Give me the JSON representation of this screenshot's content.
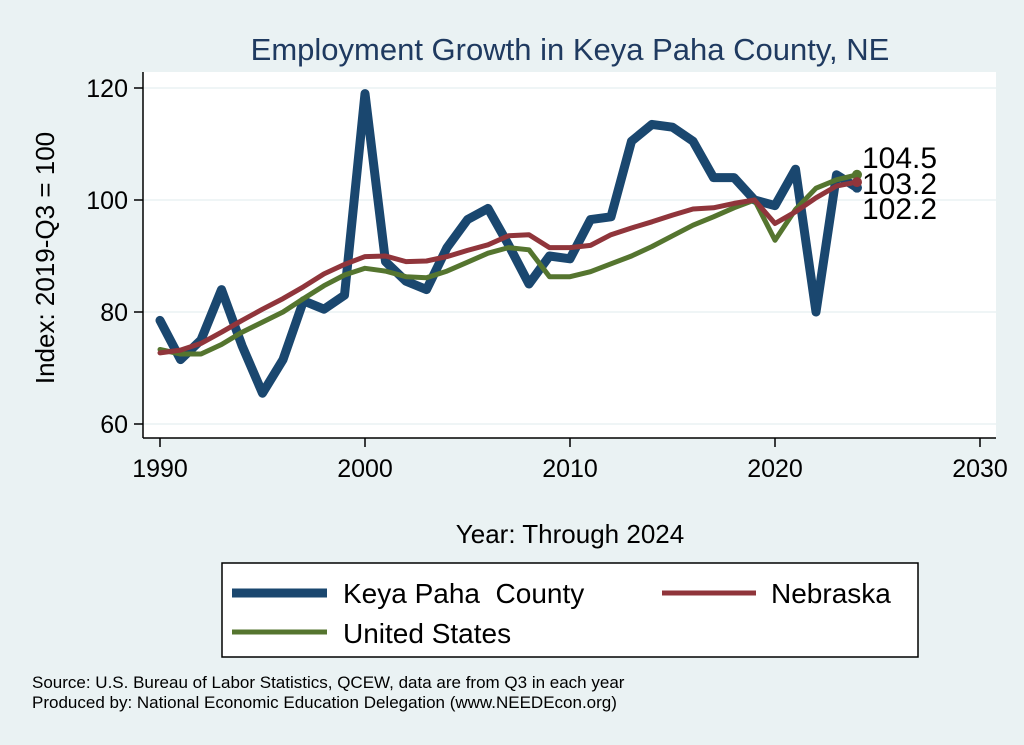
{
  "chart_data": {
    "type": "line",
    "title": "Employment Growth in Keya Paha County, NE",
    "xlabel": "Year: Through 2024",
    "ylabel": "Index: 2019-Q3 = 100",
    "xlim": [
      1990,
      2030
    ],
    "ylim": [
      60,
      120
    ],
    "x_ticks": [
      "1990",
      "2000",
      "2010",
      "2020",
      "2030"
    ],
    "y_ticks": [
      "60",
      "80",
      "100",
      "120"
    ],
    "grid": true,
    "legend_position": "bottom",
    "x": [
      1990,
      1991,
      1992,
      1993,
      1994,
      1995,
      1996,
      1997,
      1998,
      1999,
      2000,
      2001,
      2002,
      2003,
      2004,
      2005,
      2006,
      2007,
      2008,
      2009,
      2010,
      2011,
      2012,
      2013,
      2014,
      2015,
      2016,
      2017,
      2018,
      2019,
      2020,
      2021,
      2022,
      2023,
      2024
    ],
    "series": [
      {
        "name": "Keya Paha  County",
        "color": "#1a476f",
        "values": [
          78.5,
          71.5,
          75.0,
          84.0,
          74.0,
          65.5,
          71.5,
          82.0,
          80.5,
          83.0,
          119.0,
          89.0,
          85.5,
          84.0,
          91.5,
          96.5,
          98.5,
          92.0,
          85.0,
          90.0,
          89.5,
          96.5,
          97.0,
          110.5,
          113.5,
          113.0,
          110.5,
          104.0,
          104.0,
          100.0,
          99.0,
          105.5,
          80.0,
          104.5,
          102.2
        ]
      },
      {
        "name": "Nebraska",
        "color": "#90353b",
        "values": [
          72.7,
          73.2,
          74.4,
          76.4,
          78.5,
          80.5,
          82.4,
          84.5,
          86.8,
          88.5,
          89.9,
          90.0,
          89.0,
          89.1,
          89.9,
          91.0,
          92.0,
          93.6,
          93.8,
          91.5,
          91.5,
          91.9,
          93.8,
          95.0,
          96.1,
          97.3,
          98.4,
          98.6,
          99.4,
          100.0,
          95.8,
          97.9,
          100.4,
          102.5,
          103.2
        ]
      },
      {
        "name": "United States",
        "color": "#55752f",
        "values": [
          73.3,
          72.5,
          72.5,
          74.2,
          76.4,
          78.2,
          80.0,
          82.4,
          84.7,
          86.6,
          87.8,
          87.3,
          86.3,
          86.1,
          87.3,
          88.9,
          90.5,
          91.5,
          91.1,
          86.3,
          86.3,
          87.2,
          88.6,
          90.0,
          91.7,
          93.6,
          95.5,
          97.0,
          98.6,
          100.0,
          92.8,
          98.3,
          102.1,
          103.6,
          104.5
        ]
      }
    ],
    "end_labels": [
      "104.5",
      "103.2",
      "102.2"
    ]
  },
  "footnote": {
    "source": "Source: U.S. Bureau of Labor Statistics, QCEW, data are from Q3 in each year",
    "produced": "Produced by: National Economic Education Delegation (www.NEEDEcon.org)"
  }
}
